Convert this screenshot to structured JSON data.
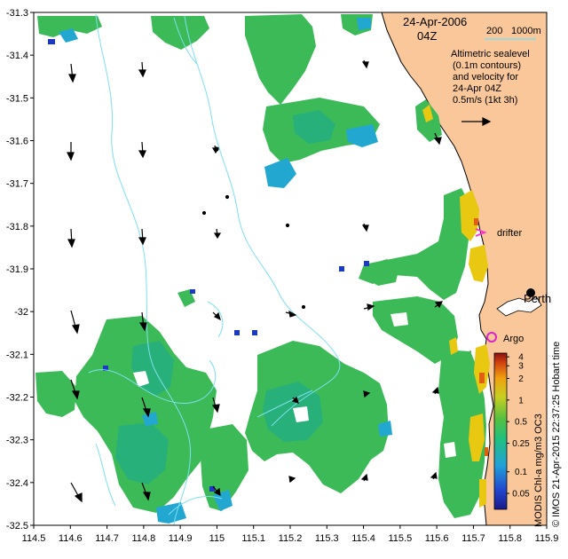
{
  "map": {
    "date_label": "24-Apr-2006",
    "time_label": "04Z",
    "scale_label": "200",
    "scale_unit": "1000m",
    "description_lines": [
      "Altimetric sealevel",
      "(0.1m contours)",
      "and velocity for",
      "24-Apr 04Z"
    ],
    "velocity_scale_label": "0.5m/s (1kt 3h)",
    "drifter_label": "drifter",
    "argo_label": "Argo",
    "city_label": "Perth",
    "credit_text": "© IMOS 21-Apr-2015 22:37:25 Hobart time",
    "colorbar_title": "MODIS Chl-a mg/m3 OC3",
    "colors": {
      "land": "#f9c79a",
      "ocean": "#ffffff",
      "contour": "#7fdff0",
      "drifter_marker": "#ff33cc",
      "argo_marker": "#dd22cc",
      "chl_mid": "#33bb55",
      "chl_high": "#e8c810",
      "chl_low": "#2299cc"
    }
  },
  "axes": {
    "x_ticks": [
      "114.5",
      "114.6",
      "114.7",
      "114.8",
      "114.9",
      "115",
      "115.1",
      "115.2",
      "115.3",
      "115.4",
      "115.5",
      "115.6",
      "115.7",
      "115.8",
      "115.9"
    ],
    "y_ticks": [
      "-31.3",
      "-31.4",
      "-31.5",
      "-31.6",
      "-31.7",
      "-31.8",
      "-31.9",
      "-32",
      "-32.1",
      "-32.2",
      "-32.3",
      "-32.4",
      "-32.5"
    ],
    "xlim": [
      114.5,
      115.9
    ],
    "ylim": [
      -32.5,
      -31.3
    ]
  },
  "colorbar": {
    "tick_labels": [
      "4",
      "3",
      "2",
      "1",
      "0.5",
      "0.25",
      "0.1",
      "0.05"
    ],
    "tick_values": [
      4,
      3,
      2,
      1,
      0.5,
      0.25,
      0.1,
      0.05
    ],
    "range": [
      0.03,
      4.5
    ],
    "scale": "log"
  }
}
